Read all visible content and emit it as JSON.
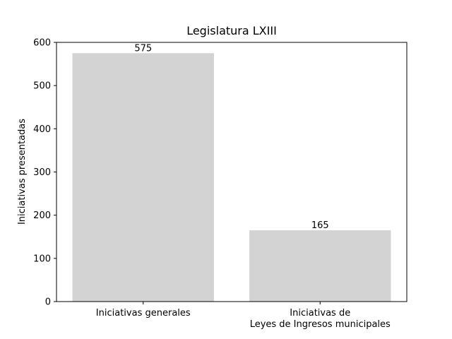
{
  "chart_data": {
    "type": "bar",
    "title": "Legislatura LXIII",
    "xlabel": "",
    "ylabel": "Iniciativas presentadas",
    "categories": [
      [
        "Iniciativas generales"
      ],
      [
        "Iniciativas de",
        "Leyes de Ingresos municipales"
      ]
    ],
    "values": [
      575,
      165
    ],
    "bar_labels": [
      "575",
      "165"
    ],
    "ylim": [
      0,
      600
    ],
    "yticks": [
      0,
      100,
      200,
      300,
      400,
      500,
      600
    ],
    "grid": false,
    "bar_color": "#d3d3d3"
  }
}
